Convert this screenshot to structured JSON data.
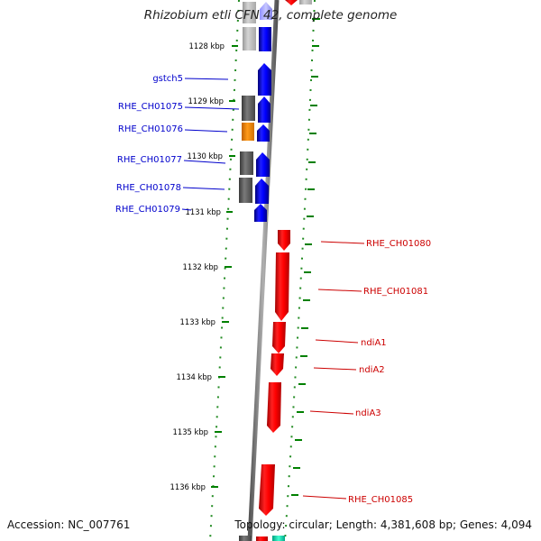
{
  "title": "Rhizobium etli CFN 42, complete genome",
  "footer": {
    "accession": "Accession: NC_007761",
    "topology": "Topology: circular; Length: 4,381,608 bp; Genes: 4,094"
  },
  "colors": {
    "forward_gene": "#0000ff",
    "reverse_gene": "#ff0000",
    "backbone": "#8c8c8c",
    "tick_mark": "#008000",
    "gc_dark": "#5a5a5a",
    "gc_light": "#b4b4b4",
    "gc_orange": "#ff8c00",
    "teal_feature": "#00e0b0"
  },
  "ticks": [
    {
      "label": "1128 kbp"
    },
    {
      "label": "1129 kbp"
    },
    {
      "label": "1130 kbp"
    },
    {
      "label": "1131 kbp"
    },
    {
      "label": "1132 kbp"
    },
    {
      "label": "1133 kbp"
    },
    {
      "label": "1134 kbp"
    },
    {
      "label": "1135 kbp"
    },
    {
      "label": "1136 kbp"
    }
  ],
  "forward_genes": [
    {
      "label": "gstch5"
    },
    {
      "label": "RHE_CH01075"
    },
    {
      "label": "RHE_CH01076"
    },
    {
      "label": "RHE_CH01077"
    },
    {
      "label": "RHE_CH01078"
    },
    {
      "label": "RHE_CH01079"
    }
  ],
  "reverse_genes": [
    {
      "label": "RHE_CH01080"
    },
    {
      "label": "RHE_CH01081"
    },
    {
      "label": "ndiA1"
    },
    {
      "label": "ndiA2"
    },
    {
      "label": "ndiA3"
    },
    {
      "label": "RHE_CH01085"
    }
  ]
}
